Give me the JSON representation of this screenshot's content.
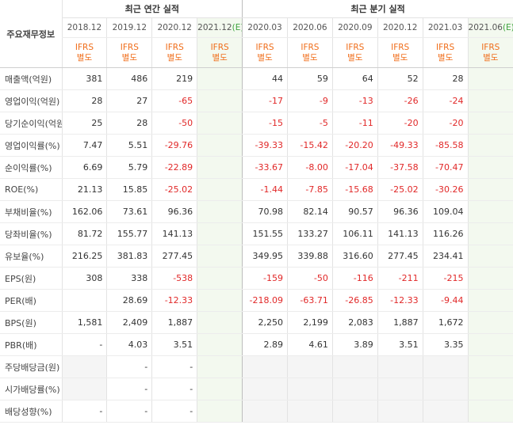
{
  "table": {
    "corner": "주요재무정보",
    "groups": [
      {
        "title": "최근 연간 실적",
        "span": 4
      },
      {
        "title": "최근 분기 실적",
        "span": 6
      }
    ],
    "columns": [
      {
        "period": "2018.12",
        "basis": [
          "IFRS",
          "별도"
        ]
      },
      {
        "period": "2019.12",
        "basis": [
          "IFRS",
          "별도"
        ]
      },
      {
        "period": "2020.12",
        "basis": [
          "IFRS",
          "별도"
        ]
      },
      {
        "period": "2021.12",
        "est": "(E)",
        "basis": [
          "IFRS",
          "별도"
        ]
      },
      {
        "period": "2020.03",
        "basis": [
          "IFRS",
          "별도"
        ]
      },
      {
        "period": "2020.06",
        "basis": [
          "IFRS",
          "별도"
        ]
      },
      {
        "period": "2020.09",
        "basis": [
          "IFRS",
          "별도"
        ]
      },
      {
        "period": "2020.12",
        "basis": [
          "IFRS",
          "별도"
        ]
      },
      {
        "period": "2021.03",
        "basis": [
          "IFRS",
          "별도"
        ]
      },
      {
        "period": "2021.06",
        "est": "(E)",
        "basis": [
          "IFRS",
          "별도"
        ]
      }
    ],
    "rows": [
      {
        "label": "매출액(억원)",
        "values": [
          "381",
          "486",
          "219",
          null,
          "44",
          "59",
          "64",
          "52",
          "28",
          null
        ]
      },
      {
        "label": "영업이익(억원)",
        "values": [
          "28",
          "27",
          "-65",
          null,
          "-17",
          "-9",
          "-13",
          "-26",
          "-24",
          null
        ]
      },
      {
        "label": "당기순이익(억원)",
        "values": [
          "25",
          "28",
          "-50",
          null,
          "-15",
          "-5",
          "-11",
          "-20",
          "-20",
          null
        ]
      },
      {
        "label": "영업이익률(%)",
        "values": [
          "7.47",
          "5.51",
          "-29.76",
          null,
          "-39.33",
          "-15.42",
          "-20.20",
          "-49.33",
          "-85.58",
          null
        ]
      },
      {
        "label": "순이익률(%)",
        "values": [
          "6.69",
          "5.79",
          "-22.89",
          null,
          "-33.67",
          "-8.00",
          "-17.04",
          "-37.58",
          "-70.47",
          null
        ]
      },
      {
        "label": "ROE(%)",
        "values": [
          "21.13",
          "15.85",
          "-25.02",
          null,
          "-1.44",
          "-7.85",
          "-15.68",
          "-25.02",
          "-30.26",
          null
        ]
      },
      {
        "label": "부채비율(%)",
        "values": [
          "162.06",
          "73.61",
          "96.36",
          null,
          "70.98",
          "82.14",
          "90.57",
          "96.36",
          "109.04",
          null
        ]
      },
      {
        "label": "당좌비율(%)",
        "values": [
          "81.72",
          "155.77",
          "141.13",
          null,
          "151.55",
          "133.27",
          "106.11",
          "141.13",
          "116.26",
          null
        ]
      },
      {
        "label": "유보율(%)",
        "values": [
          "216.25",
          "381.83",
          "277.45",
          null,
          "349.95",
          "339.88",
          "316.60",
          "277.45",
          "234.41",
          null
        ]
      },
      {
        "label": "EPS(원)",
        "values": [
          "308",
          "338",
          "-538",
          null,
          "-159",
          "-50",
          "-116",
          "-211",
          "-215",
          null
        ]
      },
      {
        "label": "PER(배)",
        "values": [
          null,
          "28.69",
          "-12.33",
          null,
          "-218.09",
          "-63.71",
          "-26.85",
          "-12.33",
          "-9.44",
          null
        ]
      },
      {
        "label": "BPS(원)",
        "values": [
          "1,581",
          "2,409",
          "1,887",
          null,
          "2,250",
          "2,199",
          "2,083",
          "1,887",
          "1,672",
          null
        ]
      },
      {
        "label": "PBR(배)",
        "values": [
          "-",
          "4.03",
          "3.51",
          null,
          "2.89",
          "4.61",
          "3.89",
          "3.51",
          "3.35",
          null
        ]
      },
      {
        "label": "주당배당금(원)",
        "values": [
          null,
          "-",
          "-",
          null,
          null,
          null,
          null,
          null,
          null,
          null
        ]
      },
      {
        "label": "시가배당률(%)",
        "values": [
          null,
          "-",
          "-",
          null,
          null,
          null,
          null,
          null,
          null,
          null
        ]
      },
      {
        "label": "배당성향(%)",
        "values": [
          "-",
          "-",
          "-",
          null,
          null,
          null,
          null,
          null,
          null,
          null
        ]
      }
    ]
  }
}
